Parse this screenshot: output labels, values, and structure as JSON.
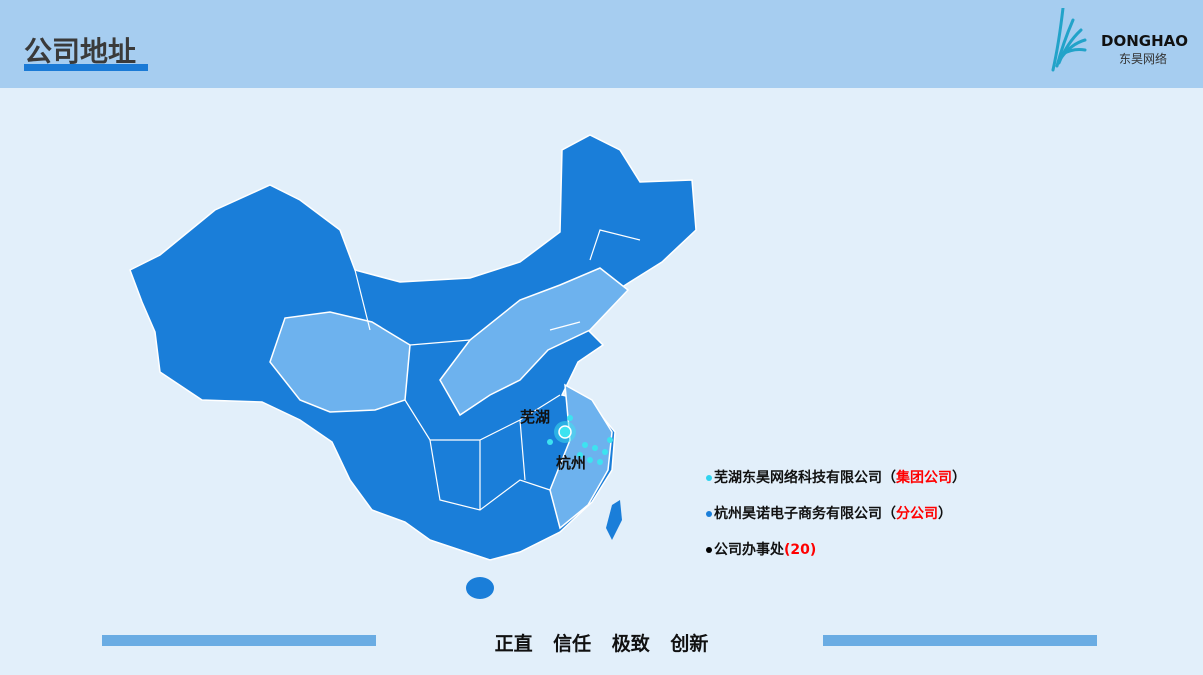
{
  "header": {
    "title": "公司地址",
    "logo_name": "DONGHAO",
    "logo_sub": "东昊网络"
  },
  "map": {
    "cities": [
      "芜湖",
      "杭州"
    ],
    "colors": {
      "province": "#1a7ed9",
      "highlight": "#6db2ee",
      "marker": "#3de3f0"
    }
  },
  "legend": [
    {
      "text": "芜湖东昊网络科技有限公司（",
      "tag": "集团公司",
      "end": "）",
      "dot_color": "#2fd3ef"
    },
    {
      "text": "杭州昊诺电子商务有限公司（",
      "tag": "分公司",
      "end": "）",
      "dot_color": "#1a7ed9"
    },
    {
      "text": "公司办事处",
      "tag": "(20)",
      "end": "",
      "dot_color": "#000000"
    }
  ],
  "footer": {
    "motto": "正直 信任  极致  创新"
  }
}
